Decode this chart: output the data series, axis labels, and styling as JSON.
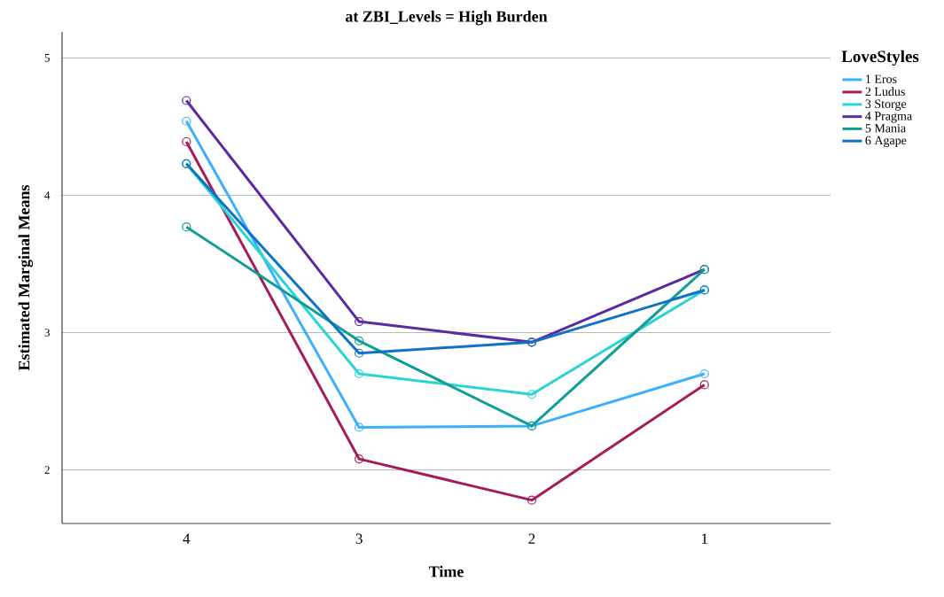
{
  "chart_data": {
    "type": "line",
    "title": "at ZBI_Levels = High Burden",
    "xlabel": "Time",
    "ylabel": "Estimated Marginal Means",
    "legend_title": "LoveStyles",
    "categories": [
      "4",
      "3",
      "2",
      "1"
    ],
    "ylim": [
      1.61,
      5.19
    ],
    "yticks": [
      2,
      3,
      4,
      5
    ],
    "grid": "y",
    "legend": "right",
    "marker": "circle",
    "line_style": "solid",
    "series": [
      {
        "name": "1 Eros",
        "color": "#3bb0ff",
        "values": [
          4.54,
          2.31,
          2.32,
          2.7
        ]
      },
      {
        "name": "2 Ludus",
        "color": "#a51c5a",
        "values": [
          4.39,
          2.08,
          1.78,
          2.62
        ]
      },
      {
        "name": "3 Storge",
        "color": "#2ad4d4",
        "values": [
          4.23,
          2.7,
          2.55,
          3.31
        ]
      },
      {
        "name": "4 Pragma",
        "color": "#5b2aa0",
        "values": [
          4.69,
          3.08,
          2.93,
          3.46
        ]
      },
      {
        "name": "5 Mania",
        "color": "#119e96",
        "values": [
          3.77,
          2.94,
          2.32,
          3.46
        ]
      },
      {
        "name": "6 Agape",
        "color": "#0f72c4",
        "values": [
          4.23,
          2.85,
          2.93,
          3.31
        ]
      }
    ]
  }
}
